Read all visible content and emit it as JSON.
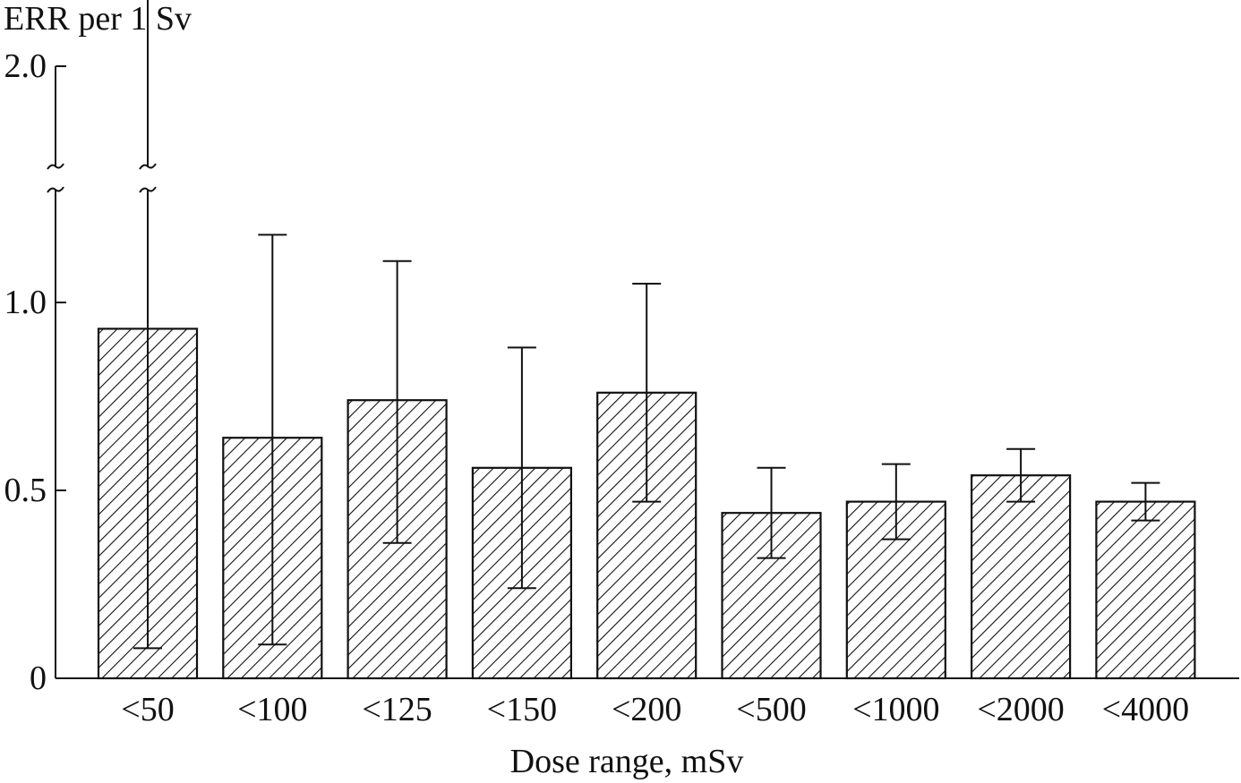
{
  "chart_data": {
    "type": "bar",
    "ylabel": "ERR per 1 Sv",
    "xlabel": "Dose range, mSv",
    "categories": [
      "<50",
      "<100",
      "<125",
      "<150",
      "<200",
      "<500",
      "<1000",
      "<2000",
      "<4000"
    ],
    "values": [
      0.93,
      0.64,
      0.74,
      0.56,
      0.76,
      0.44,
      0.47,
      0.54,
      0.47
    ],
    "error_low": [
      0.08,
      0.09,
      0.36,
      0.24,
      0.47,
      0.32,
      0.37,
      0.47,
      0.42
    ],
    "error_high": [
      2.3,
      1.18,
      1.11,
      0.88,
      1.05,
      0.56,
      0.57,
      0.61,
      0.52
    ],
    "yticks": [
      {
        "value": 0,
        "label": "0"
      },
      {
        "value": 0.5,
        "label": "0.5"
      },
      {
        "value": 1.0,
        "label": "1.0"
      },
      {
        "value": 2.0,
        "label": "2.0"
      }
    ],
    "axis_break": {
      "shown": true,
      "from": 1.3,
      "to": 1.9
    },
    "bar_fill": "diagonal hatch",
    "grid": false,
    "legend": "none"
  }
}
